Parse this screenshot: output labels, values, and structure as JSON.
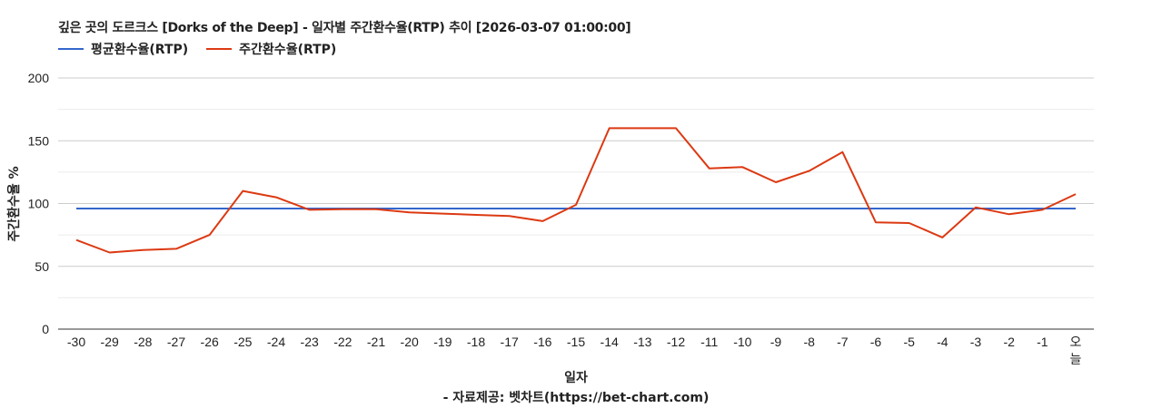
{
  "title": "깊은 곳의 도르크스 [Dorks of the Deep] - 일자별 주간환수율(RTP) 추이 [2026-03-07 01:00:00]",
  "legend": [
    {
      "label": "평균환수율(RTP)",
      "color": "#3366cc"
    },
    {
      "label": "주간환수율(RTP)",
      "color": "#dc3912"
    }
  ],
  "footer": "- 자료제공: 벳차트(https://bet-chart.com)",
  "chart_data": {
    "type": "line",
    "title": "깊은 곳의 도르크스 [Dorks of the Deep] - 일자별 주간환수율(RTP) 추이 [2026-03-07 01:00:00]",
    "xlabel": "일자",
    "ylabel": "주간환수율 %",
    "ylim": [
      0,
      200
    ],
    "yticks": [
      0,
      50,
      100,
      150,
      200
    ],
    "grid": true,
    "legend_position": "top",
    "categories": [
      "-30",
      "-29",
      "-28",
      "-27",
      "-26",
      "-25",
      "-24",
      "-23",
      "-22",
      "-21",
      "-20",
      "-19",
      "-18",
      "-17",
      "-16",
      "-15",
      "-14",
      "-13",
      "-12",
      "-11",
      "-10",
      "-9",
      "-8",
      "-7",
      "-6",
      "-5",
      "-4",
      "-3",
      "-2",
      "-1",
      "오늘"
    ],
    "series": [
      {
        "name": "평균환수율(RTP)",
        "color": "#3366cc",
        "values": [
          96,
          96,
          96,
          96,
          96,
          96,
          96,
          96,
          96,
          96,
          96,
          96,
          96,
          96,
          96,
          96,
          96,
          96,
          96,
          96,
          96,
          96,
          96,
          96,
          96,
          96,
          96,
          96,
          96,
          96,
          96
        ]
      },
      {
        "name": "주간환수율(RTP)",
        "color": "#dc3912",
        "values": [
          71,
          61,
          63,
          64,
          75,
          110,
          105,
          95,
          95.5,
          95.5,
          93,
          92,
          91,
          90,
          86,
          99,
          160,
          160,
          160,
          128,
          129,
          117,
          126,
          141,
          85,
          84.5,
          73,
          97,
          91.5,
          95,
          107.5
        ]
      }
    ]
  }
}
